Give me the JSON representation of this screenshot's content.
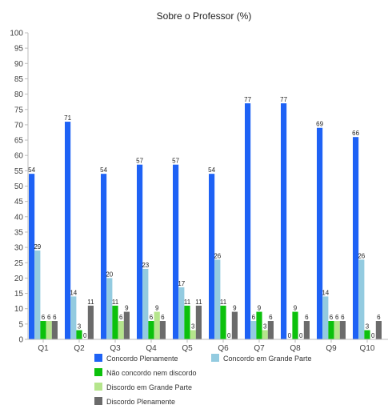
{
  "chart_data": {
    "type": "bar",
    "title": "Sobre o Professor (%)",
    "xlabel": "",
    "ylabel": "",
    "ylim": [
      0,
      100
    ],
    "yticks": [
      0,
      5,
      10,
      15,
      20,
      25,
      30,
      35,
      40,
      45,
      50,
      55,
      60,
      65,
      70,
      75,
      80,
      85,
      90,
      95,
      100
    ],
    "grid": false,
    "legend_position": "bottom",
    "categories": [
      "Q1",
      "Q2",
      "Q3",
      "Q4",
      "Q5",
      "Q6",
      "Q7",
      "Q8",
      "Q9",
      "Q10"
    ],
    "series": [
      {
        "name": "Concordo Plenamente",
        "color": "#1e62f5",
        "values": [
          54,
          71,
          54,
          57,
          57,
          54,
          77,
          77,
          69,
          66
        ]
      },
      {
        "name": "Concordo em Grande Parte",
        "color": "#93cbe0",
        "values": [
          29,
          14,
          20,
          23,
          17,
          26,
          6,
          0,
          14,
          26
        ]
      },
      {
        "name": "Não concordo nem discordo",
        "color": "#0cc10c",
        "values": [
          6,
          3,
          11,
          6,
          11,
          11,
          9,
          9,
          6,
          3
        ]
      },
      {
        "name": "Discordo em Grande Parte",
        "color": "#b5e58c",
        "values": [
          6,
          0,
          6,
          9,
          3,
          0,
          3,
          0,
          6,
          0
        ]
      },
      {
        "name": "Discordo Plenamente",
        "color": "#6b6b6b",
        "values": [
          6,
          11,
          9,
          6,
          11,
          9,
          6,
          6,
          6,
          6
        ]
      }
    ]
  }
}
